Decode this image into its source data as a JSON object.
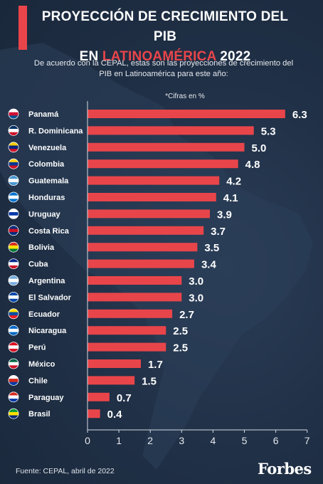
{
  "header": {
    "title_line1": "PROYECCIÓN DE CRECIMIENTO DEL PIB",
    "title_prefix": "EN",
    "title_accent": "LATINOAMÉRICA",
    "title_suffix": "2022",
    "subtitle": "De acuerdo con la CEPAL, estas son las proyecciones de crecimiento del PIB en Latinoamérica para este año:",
    "units_note": "*Cifras en %"
  },
  "footer": {
    "source": "Fuente: CEPAL, abril de 2022",
    "logo": "Forbes"
  },
  "colors": {
    "bar": "#e8454a",
    "background": "#1f2f45",
    "accent": "#e8454a",
    "text": "#ffffff"
  },
  "chart_data": {
    "type": "bar",
    "orientation": "horizontal",
    "categories": [
      "Panamá",
      "R. Dominicana",
      "Venezuela",
      "Colombia",
      "Guatemala",
      "Honduras",
      "Uruguay",
      "Costa Rica",
      "Bolivia",
      "Cuba",
      "Argentina",
      "El Salvador",
      "Ecuador",
      "Nicaragua",
      "Perú",
      "México",
      "Chile",
      "Paraguay",
      "Brasil"
    ],
    "values": [
      6.3,
      5.3,
      5.0,
      4.8,
      4.2,
      4.1,
      3.9,
      3.7,
      3.5,
      3.4,
      3.0,
      3.0,
      2.7,
      2.5,
      2.5,
      1.7,
      1.5,
      0.7,
      0.4
    ],
    "value_labels": [
      "6.3",
      "5.3",
      "5.0",
      "4.8",
      "4.2",
      "4.1",
      "3.9",
      "3.7",
      "3.5",
      "3.4",
      "3.0",
      "3.0",
      "2.7",
      "2.5",
      "2.5",
      "1.7",
      "1.5",
      "0.7",
      "0.4"
    ],
    "flag_icons": [
      "panama-flag-icon",
      "dominican-republic-flag-icon",
      "venezuela-flag-icon",
      "colombia-flag-icon",
      "guatemala-flag-icon",
      "honduras-flag-icon",
      "uruguay-flag-icon",
      "costa-rica-flag-icon",
      "bolivia-flag-icon",
      "cuba-flag-icon",
      "argentina-flag-icon",
      "el-salvador-flag-icon",
      "ecuador-flag-icon",
      "nicaragua-flag-icon",
      "peru-flag-icon",
      "mexico-flag-icon",
      "chile-flag-icon",
      "paraguay-flag-icon",
      "brasil-flag-icon"
    ],
    "xlim": [
      0,
      7
    ],
    "xticks": [
      "0",
      "1",
      "2",
      "3",
      "4",
      "5",
      "6",
      "7"
    ],
    "grid": false,
    "legend": "none"
  }
}
